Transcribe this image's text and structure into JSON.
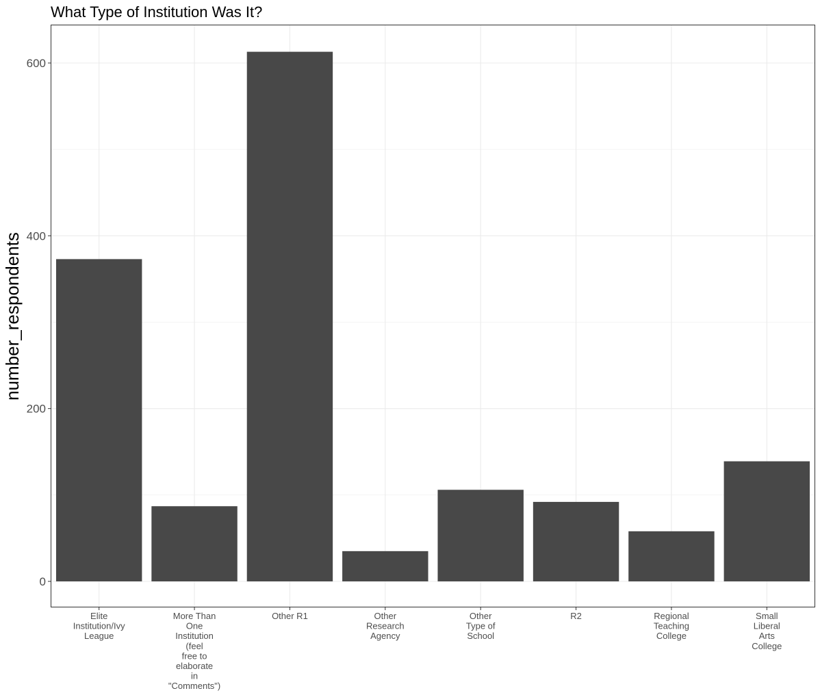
{
  "chart_data": {
    "type": "bar",
    "title": "What Type of Institution Was It?",
    "xlabel": "",
    "ylabel": "number_respondents",
    "categories": [
      "Elite Institution/Ivy League",
      "More Than One Institution (feel free to elaborate in \"Comments\")",
      "Other R1",
      "Other Research Agency",
      "Other Type of School",
      "R2",
      "Regional Teaching College",
      "Small Liberal Arts College"
    ],
    "category_label_lines": [
      [
        "Elite",
        "Institution/Ivy",
        "League"
      ],
      [
        "More Than",
        "One",
        "Institution",
        "(feel",
        "free to",
        "elaborate",
        "in",
        "\"Comments\")"
      ],
      [
        "Other R1"
      ],
      [
        "Other",
        "Research",
        "Agency"
      ],
      [
        "Other",
        "Type of",
        "School"
      ],
      [
        "R2"
      ],
      [
        "Regional",
        "Teaching",
        "College"
      ],
      [
        "Small",
        "Liberal",
        "Arts",
        "College"
      ]
    ],
    "values": [
      373,
      87,
      613,
      35,
      106,
      92,
      58,
      139
    ],
    "ylim": [
      -30,
      640
    ],
    "yticks": [
      0,
      200,
      400,
      600
    ],
    "grid": true,
    "bar_color": "#484848"
  }
}
